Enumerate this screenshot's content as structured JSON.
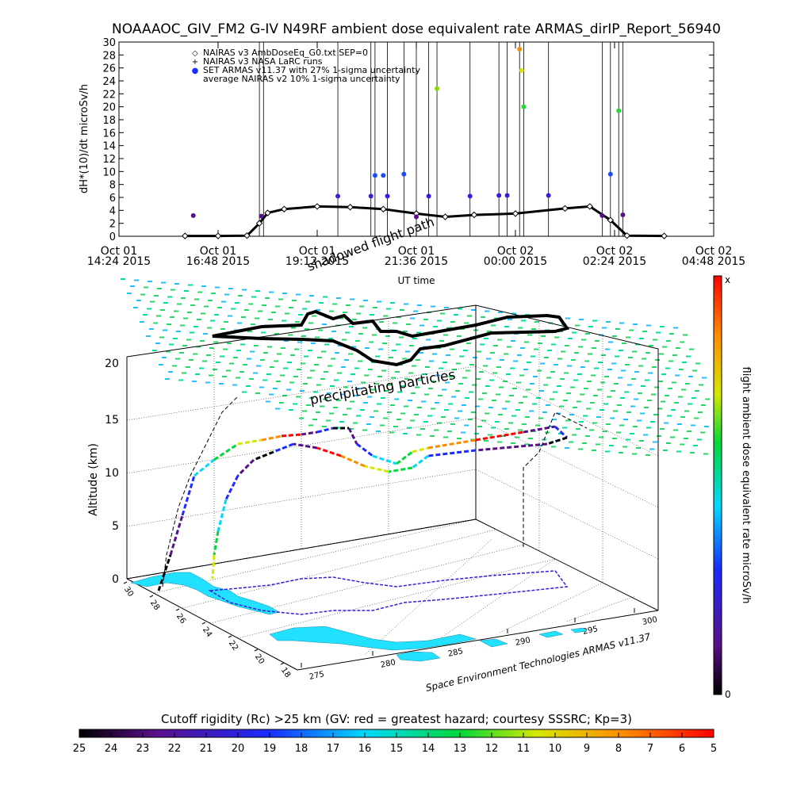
{
  "title": "NOAAAOC_GIV_FM2 G-IV    N49RF  ambient dose equivalent rate ARMAS_dirIP_Report_56940",
  "top_chart": {
    "ylabel": "dH*(10)/dt microSv/h",
    "xlabel": "UT time",
    "y_ticks": [
      "0",
      "2",
      "4",
      "6",
      "8",
      "10",
      "12",
      "14",
      "16",
      "18",
      "20",
      "22",
      "24",
      "26",
      "28",
      "30"
    ],
    "x_ticks": [
      {
        "line1": "Oct 01",
        "line2": "14:24 2015"
      },
      {
        "line1": "Oct 01",
        "line2": "16:48 2015"
      },
      {
        "line1": "Oct 01",
        "line2": "19:12 2015"
      },
      {
        "line1": "Oct 01",
        "line2": "21:36 2015"
      },
      {
        "line1": "Oct 02",
        "line2": "00:00 2015"
      },
      {
        "line1": "Oct 02",
        "line2": "02:24 2015"
      },
      {
        "line1": "Oct 02",
        "line2": "04:48 2015"
      }
    ],
    "legend": [
      {
        "symbol": "◇",
        "text": "NAIRAS v3 AmbDoseEq_G0.txt SEP=0"
      },
      {
        "symbol": "+",
        "text": "NAIRAS v3 NASA LaRC runs"
      },
      {
        "symbol": "●",
        "text": "SET ARMAS v11.37 with 27% 1-sigma uncertainty"
      },
      {
        "symbol": "",
        "text": "average NAIRAS v2 10% 1-sigma uncertainty"
      }
    ]
  },
  "chart_data": {
    "type": "scatter",
    "title": "NOAAAOC_GIV_FM2 G-IV    N49RF  ambient dose equivalent rate ARMAS_dirIP_Report_56940",
    "xlabel": "UT time",
    "ylabel": "dH*(10)/dt microSv/h",
    "ylim": [
      0,
      30
    ],
    "x_unit": "hours since Oct 01 14:24 2015",
    "xlim": [
      0,
      14.4
    ],
    "series": [
      {
        "name": "NAIRAS v3 AmbDoseEq_G0.txt SEP=0",
        "points": [
          [
            1.6,
            0.05
          ],
          [
            2.4,
            0.05
          ],
          [
            3.1,
            0.1
          ],
          [
            3.4,
            2.0
          ],
          [
            3.6,
            3.6
          ],
          [
            4.0,
            4.2
          ],
          [
            4.8,
            4.6
          ],
          [
            5.6,
            4.5
          ],
          [
            6.4,
            4.2
          ],
          [
            7.2,
            3.5
          ],
          [
            7.9,
            3.0
          ],
          [
            8.6,
            3.3
          ],
          [
            9.6,
            3.5
          ],
          [
            10.8,
            4.3
          ],
          [
            11.4,
            4.6
          ],
          [
            11.9,
            2.5
          ],
          [
            12.3,
            0.1
          ],
          [
            13.2,
            0.05
          ]
        ]
      },
      {
        "name": "SET ARMAS v11.37 with 27% 1-sigma uncertainty",
        "points": [
          [
            1.8,
            3.2
          ],
          [
            3.45,
            3.1
          ],
          [
            5.3,
            6.2
          ],
          [
            6.1,
            6.2
          ],
          [
            6.2,
            9.4
          ],
          [
            6.4,
            9.4
          ],
          [
            6.5,
            6.2
          ],
          [
            6.9,
            9.6
          ],
          [
            7.2,
            3.0
          ],
          [
            7.5,
            6.2
          ],
          [
            7.7,
            22.8
          ],
          [
            8.5,
            6.2
          ],
          [
            9.2,
            6.3
          ],
          [
            9.4,
            6.3
          ],
          [
            9.7,
            28.9
          ],
          [
            9.75,
            25.6
          ],
          [
            9.8,
            20.0
          ],
          [
            10.4,
            6.3
          ],
          [
            11.7,
            3.2
          ],
          [
            11.9,
            9.6
          ],
          [
            12.1,
            19.4
          ],
          [
            12.2,
            3.3
          ]
        ]
      }
    ],
    "colorbar_right": {
      "label": "flight ambient dose equivalent rate microSv/h",
      "top": "x",
      "bottom": "0"
    },
    "colorbar_bottom": {
      "label": "Cutoff rigidity (Rc) >25 km (GV: red = greatest hazard; courtesy SSSRC; Kp=3)",
      "ticks": [
        "25",
        "24",
        "23",
        "22",
        "21",
        "20",
        "19",
        "18",
        "17",
        "16",
        "15",
        "14",
        "13",
        "12",
        "11",
        "10",
        "9",
        "8",
        "7",
        "6",
        "5"
      ]
    },
    "panel3d": {
      "z_label": "Altitude (km)",
      "z_ticks": [
        "0",
        "5",
        "10",
        "15",
        "20"
      ],
      "lat_ticks": [
        "30",
        "28",
        "26",
        "24",
        "22",
        "20",
        "18"
      ],
      "lon_ticks": [
        "275",
        "280",
        "285",
        "290",
        "295",
        "300"
      ],
      "annotations": [
        "shadowed flight path",
        "precipitating particles",
        "Space Environment Technologies ARMAS v11.37"
      ]
    }
  }
}
